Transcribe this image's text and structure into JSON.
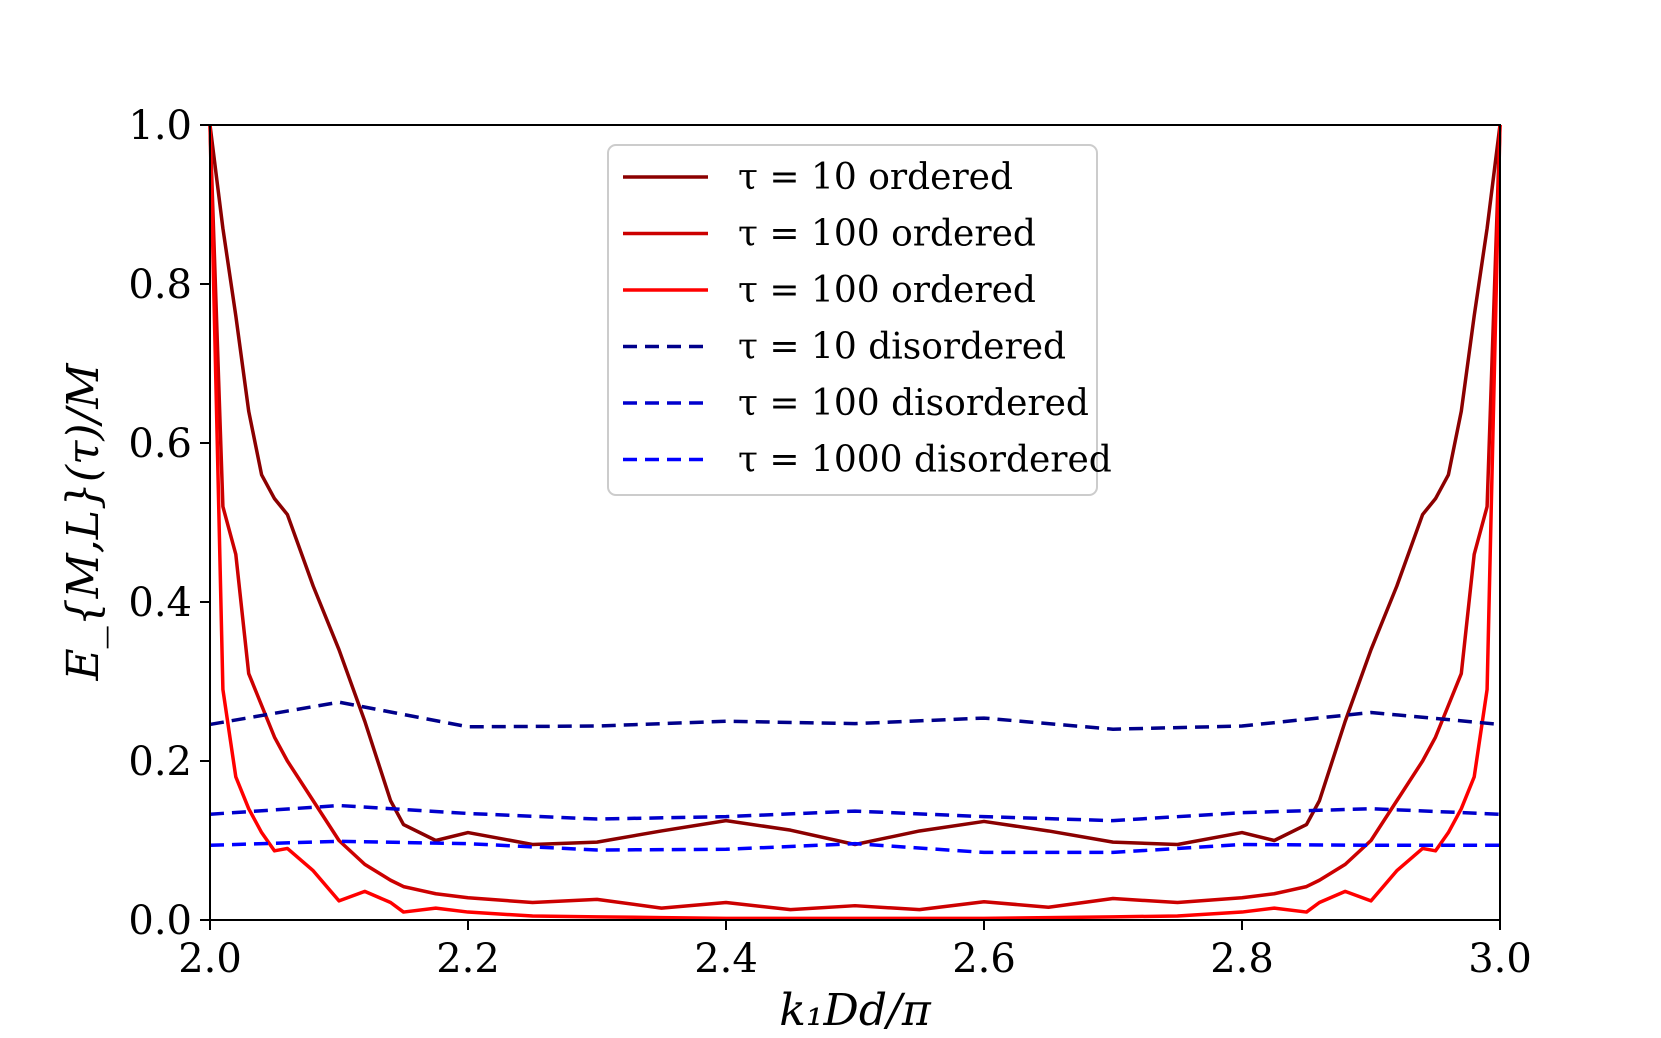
{
  "chart_data": {
    "type": "line",
    "title": "",
    "xlabel": "k₁Dd/π",
    "ylabel": "E_{M,L}(τ)/M",
    "xlim": [
      2.0,
      3.0
    ],
    "ylim": [
      0.0,
      1.0
    ],
    "xticks": [
      "2.0",
      "2.2",
      "2.4",
      "2.6",
      "2.8",
      "3.0"
    ],
    "yticks": [
      "0.0",
      "0.2",
      "0.4",
      "0.6",
      "0.8",
      "1.0"
    ],
    "xtick_values": [
      2.0,
      2.2,
      2.4,
      2.6,
      2.8,
      3.0
    ],
    "ytick_values": [
      0.0,
      0.2,
      0.4,
      0.6,
      0.8,
      1.0
    ],
    "grid": false,
    "legend_position": "top-center",
    "series": [
      {
        "name": "τ = 10 ordered",
        "color": "#8b0000",
        "dash": "solid",
        "x": [
          2.0,
          2.01,
          2.02,
          2.03,
          2.04,
          2.05,
          2.06,
          2.08,
          2.1,
          2.12,
          2.14,
          2.15,
          2.175,
          2.2,
          2.25,
          2.3,
          2.35,
          2.4,
          2.45,
          2.5,
          2.55,
          2.6,
          2.65,
          2.7,
          2.75,
          2.8,
          2.825,
          2.85,
          2.86,
          2.88,
          2.9,
          2.92,
          2.94,
          2.95,
          2.96,
          2.97,
          2.98,
          2.99,
          3.0
        ],
        "y": [
          1.0,
          0.87,
          0.76,
          0.64,
          0.56,
          0.53,
          0.51,
          0.42,
          0.34,
          0.25,
          0.15,
          0.12,
          0.1,
          0.11,
          0.095,
          0.098,
          0.112,
          0.125,
          0.113,
          0.095,
          0.112,
          0.124,
          0.112,
          0.098,
          0.095,
          0.11,
          0.1,
          0.12,
          0.15,
          0.25,
          0.34,
          0.42,
          0.51,
          0.53,
          0.56,
          0.64,
          0.76,
          0.87,
          1.0
        ]
      },
      {
        "name": "τ = 100 ordered",
        "color": "#cc0000",
        "dash": "solid",
        "x": [
          2.0,
          2.01,
          2.02,
          2.03,
          2.04,
          2.05,
          2.06,
          2.08,
          2.1,
          2.12,
          2.14,
          2.15,
          2.175,
          2.2,
          2.25,
          2.3,
          2.35,
          2.4,
          2.45,
          2.5,
          2.55,
          2.6,
          2.65,
          2.7,
          2.75,
          2.8,
          2.825,
          2.85,
          2.86,
          2.88,
          2.9,
          2.92,
          2.94,
          2.95,
          2.96,
          2.97,
          2.98,
          2.99,
          3.0
        ],
        "y": [
          1.0,
          0.52,
          0.46,
          0.31,
          0.27,
          0.23,
          0.2,
          0.15,
          0.1,
          0.07,
          0.05,
          0.042,
          0.033,
          0.028,
          0.022,
          0.026,
          0.015,
          0.022,
          0.013,
          0.018,
          0.013,
          0.023,
          0.016,
          0.027,
          0.022,
          0.028,
          0.033,
          0.042,
          0.05,
          0.07,
          0.1,
          0.15,
          0.2,
          0.23,
          0.27,
          0.31,
          0.46,
          0.52,
          1.0
        ]
      },
      {
        "name": "τ = 100 ordered",
        "color": "#ff0000",
        "dash": "solid",
        "x": [
          2.0,
          2.01,
          2.02,
          2.03,
          2.04,
          2.05,
          2.06,
          2.08,
          2.1,
          2.12,
          2.14,
          2.15,
          2.175,
          2.2,
          2.25,
          2.3,
          2.35,
          2.4,
          2.45,
          2.5,
          2.55,
          2.6,
          2.65,
          2.7,
          2.75,
          2.8,
          2.825,
          2.85,
          2.86,
          2.88,
          2.9,
          2.92,
          2.94,
          2.95,
          2.96,
          2.97,
          2.98,
          2.99,
          3.0
        ],
        "y": [
          1.0,
          0.29,
          0.18,
          0.14,
          0.11,
          0.087,
          0.09,
          0.062,
          0.024,
          0.036,
          0.022,
          0.01,
          0.015,
          0.01,
          0.005,
          0.004,
          0.003,
          0.002,
          0.002,
          0.002,
          0.002,
          0.002,
          0.003,
          0.004,
          0.005,
          0.01,
          0.015,
          0.01,
          0.022,
          0.036,
          0.024,
          0.062,
          0.09,
          0.087,
          0.11,
          0.14,
          0.18,
          0.29,
          1.0
        ]
      },
      {
        "name": "τ = 10 disordered",
        "color": "#00008b",
        "dash": "dashed",
        "x": [
          2.0,
          2.1,
          2.2,
          2.3,
          2.4,
          2.5,
          2.6,
          2.7,
          2.8,
          2.9,
          3.0
        ],
        "y": [
          0.246,
          0.274,
          0.243,
          0.244,
          0.25,
          0.247,
          0.254,
          0.24,
          0.244,
          0.261,
          0.246
        ]
      },
      {
        "name": "τ = 100 disordered",
        "color": "#0000cd",
        "dash": "dashed",
        "x": [
          2.0,
          2.1,
          2.2,
          2.3,
          2.4,
          2.5,
          2.6,
          2.7,
          2.8,
          2.9,
          3.0
        ],
        "y": [
          0.133,
          0.144,
          0.134,
          0.127,
          0.13,
          0.137,
          0.13,
          0.125,
          0.135,
          0.14,
          0.133
        ]
      },
      {
        "name": "τ = 1000 disordered",
        "color": "#0000ff",
        "dash": "dashed",
        "x": [
          2.0,
          2.1,
          2.2,
          2.3,
          2.4,
          2.5,
          2.6,
          2.7,
          2.8,
          2.9,
          3.0
        ],
        "y": [
          0.094,
          0.099,
          0.096,
          0.088,
          0.089,
          0.096,
          0.085,
          0.085,
          0.095,
          0.094,
          0.094
        ]
      }
    ]
  }
}
